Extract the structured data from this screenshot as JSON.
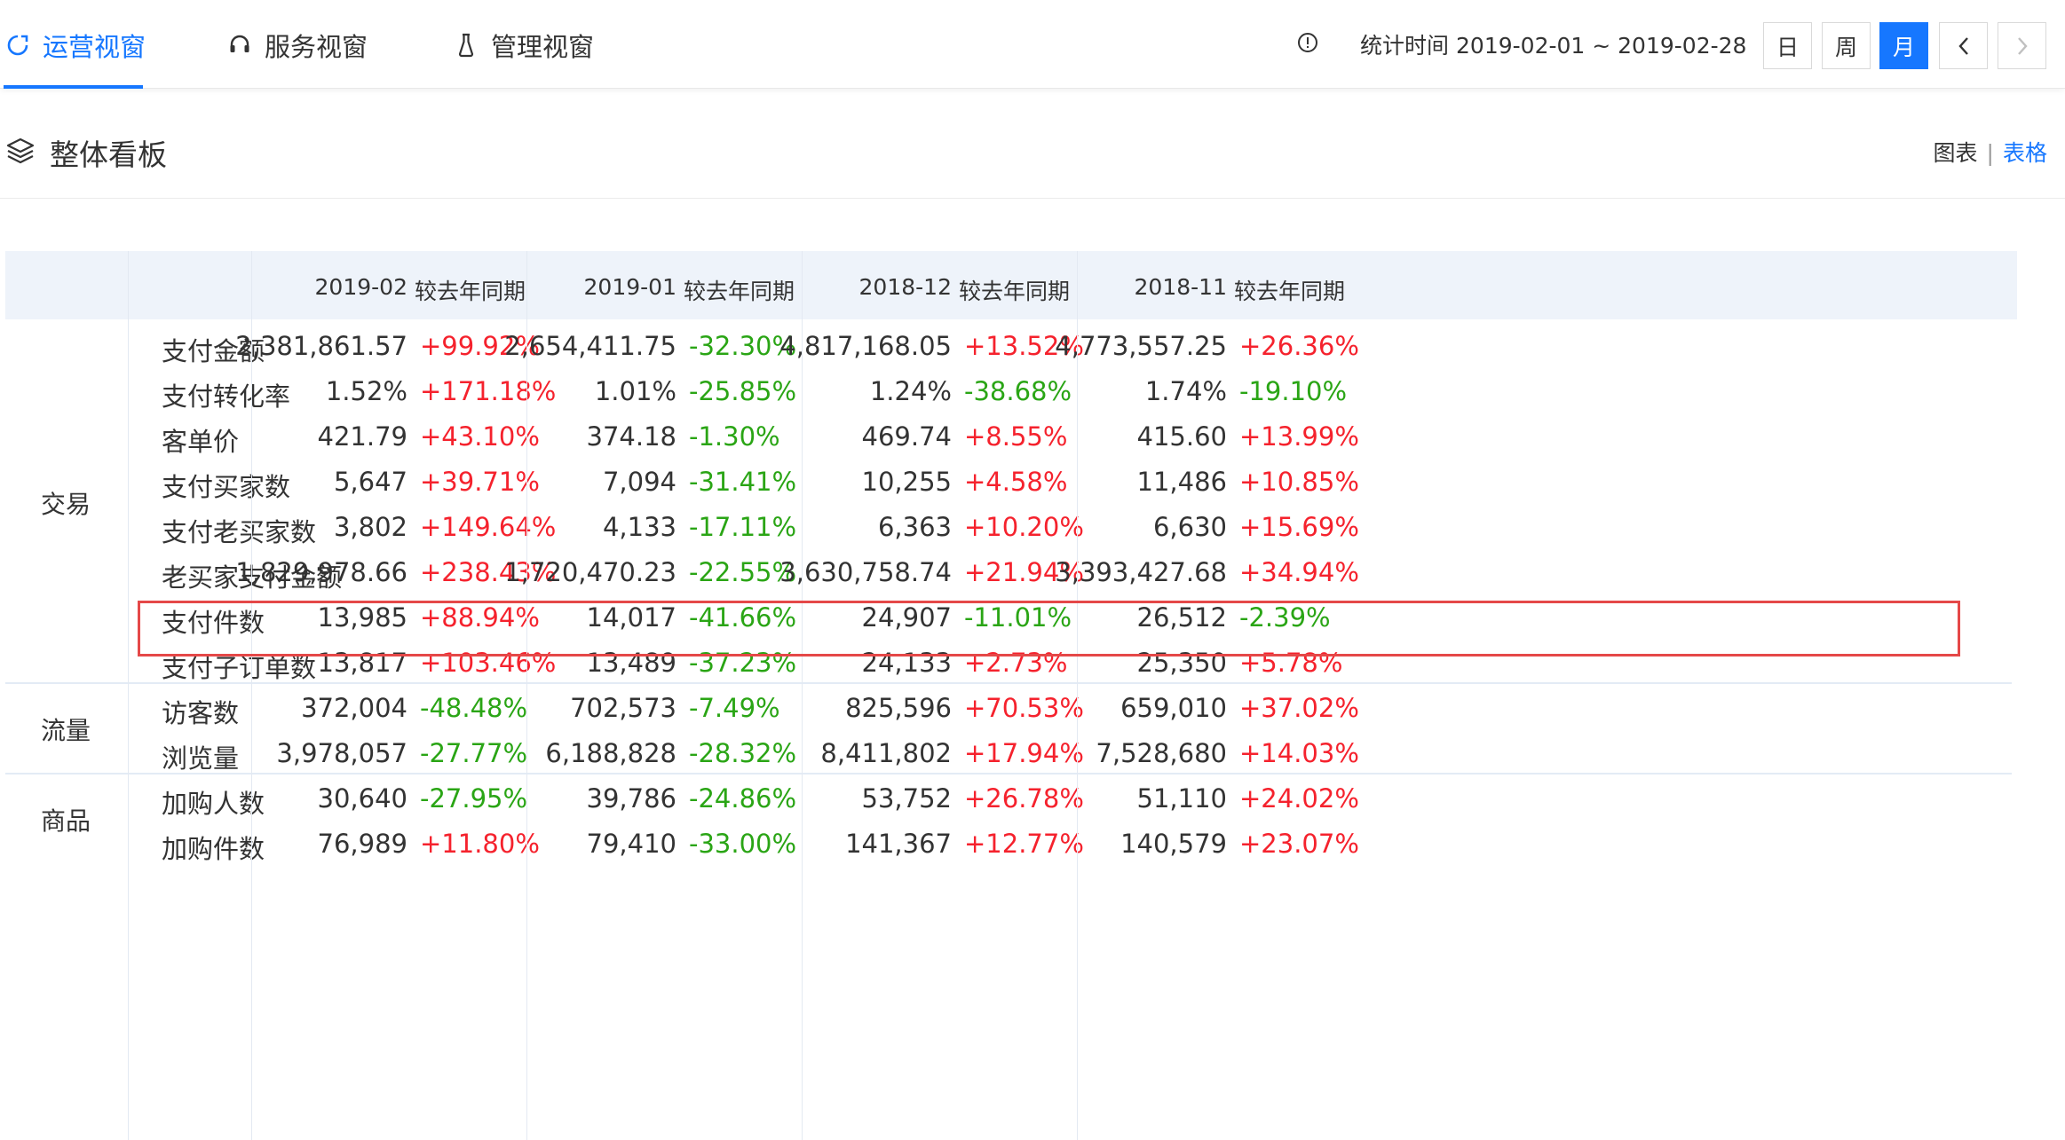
{
  "nav": {
    "tabs": [
      {
        "label": "运营视窗",
        "icon": "operation-icon",
        "active": true
      },
      {
        "label": "服务视窗",
        "icon": "headset-icon",
        "active": false
      },
      {
        "label": "管理视窗",
        "icon": "flask-icon",
        "active": false
      }
    ],
    "stat_time_label": "统计时间",
    "stat_time_range": "2019-02-01 ~ 2019-02-28",
    "period_buttons": [
      "日",
      "周",
      "月"
    ],
    "active_period": "月",
    "prev": "<",
    "next": ">"
  },
  "panel": {
    "title": "整体看板",
    "view_chart": "图表",
    "view_separator": "|",
    "view_table": "表格",
    "active_view": "表格"
  },
  "table": {
    "columns": [
      {
        "date": "2019-02",
        "compare": "较去年同期"
      },
      {
        "date": "2019-01",
        "compare": "较去年同期"
      },
      {
        "date": "2018-12",
        "compare": "较去年同期"
      },
      {
        "date": "2018-11",
        "compare": "较去年同期"
      }
    ],
    "groups": [
      {
        "name": "交易",
        "rows": [
          {
            "metric": "支付金额",
            "cells": [
              [
                "2,381,861.57",
                "+99.92%"
              ],
              [
                "2,654,411.75",
                "-32.30%"
              ],
              [
                "4,817,168.05",
                "+13.52%"
              ],
              [
                "4,773,557.25",
                "+26.36%"
              ]
            ]
          },
          {
            "metric": "支付转化率",
            "cells": [
              [
                "1.52%",
                "+171.18%"
              ],
              [
                "1.01%",
                "-25.85%"
              ],
              [
                "1.24%",
                "-38.68%"
              ],
              [
                "1.74%",
                "-19.10%"
              ]
            ]
          },
          {
            "metric": "客单价",
            "cells": [
              [
                "421.79",
                "+43.10%"
              ],
              [
                "374.18",
                "-1.30%"
              ],
              [
                "469.74",
                "+8.55%"
              ],
              [
                "415.60",
                "+13.99%"
              ]
            ]
          },
          {
            "metric": "支付买家数",
            "cells": [
              [
                "5,647",
                "+39.71%"
              ],
              [
                "7,094",
                "-31.41%"
              ],
              [
                "10,255",
                "+4.58%"
              ],
              [
                "11,486",
                "+10.85%"
              ]
            ]
          },
          {
            "metric": "支付老买家数",
            "highlighted": true,
            "cells": [
              [
                "3,802",
                "+149.64%"
              ],
              [
                "4,133",
                "-17.11%"
              ],
              [
                "6,363",
                "+10.20%"
              ],
              [
                "6,630",
                "+15.69%"
              ]
            ]
          },
          {
            "metric": "老买家支付金额",
            "cells": [
              [
                "1,829,978.66",
                "+238.43%"
              ],
              [
                "1,720,470.23",
                "-22.55%"
              ],
              [
                "3,630,758.74",
                "+21.94%"
              ],
              [
                "3,393,427.68",
                "+34.94%"
              ]
            ]
          },
          {
            "metric": "支付件数",
            "cells": [
              [
                "13,985",
                "+88.94%"
              ],
              [
                "14,017",
                "-41.66%"
              ],
              [
                "24,907",
                "-11.01%"
              ],
              [
                "26,512",
                "-2.39%"
              ]
            ]
          },
          {
            "metric": "支付子订单数",
            "cells": [
              [
                "13,817",
                "+103.46%"
              ],
              [
                "13,489",
                "-37.23%"
              ],
              [
                "24,133",
                "+2.73%"
              ],
              [
                "25,350",
                "+5.78%"
              ]
            ]
          }
        ]
      },
      {
        "name": "流量",
        "rows": [
          {
            "metric": "访客数",
            "cells": [
              [
                "372,004",
                "-48.48%"
              ],
              [
                "702,573",
                "-7.49%"
              ],
              [
                "825,596",
                "+70.53%"
              ],
              [
                "659,010",
                "+37.02%"
              ]
            ]
          },
          {
            "metric": "浏览量",
            "cells": [
              [
                "3,978,057",
                "-27.77%"
              ],
              [
                "6,188,828",
                "-28.32%"
              ],
              [
                "8,411,802",
                "+17.94%"
              ],
              [
                "7,528,680",
                "+14.03%"
              ]
            ]
          }
        ]
      },
      {
        "name": "商品",
        "rows": [
          {
            "metric": "加购人数",
            "cells": [
              [
                "30,640",
                "-27.95%"
              ],
              [
                "39,786",
                "-24.86%"
              ],
              [
                "53,752",
                "+26.78%"
              ],
              [
                "51,110",
                "+24.02%"
              ]
            ]
          },
          {
            "metric": "加购件数",
            "cells": [
              [
                "76,989",
                "+11.80%"
              ],
              [
                "79,410",
                "-33.00%"
              ],
              [
                "141,367",
                "+12.77%"
              ],
              [
                "140,579",
                "+23.07%"
              ]
            ]
          }
        ]
      }
    ]
  }
}
